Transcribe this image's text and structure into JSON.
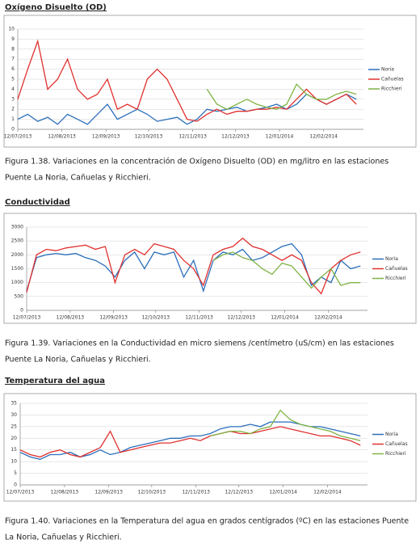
{
  "chart_data": [
    {
      "type": "line",
      "title": "Oxígeno Disuelto (OD)",
      "caption": [
        "Figura 1.38. Variaciones en la concentración de Oxígeno Disuelto (OD) en mg/litro en las estaciones",
        "Puente La Noria, Cañuelas y Ricchieri."
      ],
      "x": [
        "2013-07-12",
        "2013-07-19",
        "2013-07-26",
        "2013-08-02",
        "2013-08-09",
        "2013-08-16",
        "2013-08-23",
        "2013-08-30",
        "2013-09-06",
        "2013-09-13",
        "2013-09-20",
        "2013-09-27",
        "2013-10-04",
        "2013-10-11",
        "2013-10-18",
        "2013-10-25",
        "2013-11-01",
        "2013-11-08",
        "2013-11-15",
        "2013-11-22",
        "2013-11-29",
        "2013-12-06",
        "2013-12-13",
        "2013-12-20",
        "2013-12-27",
        "2014-01-03",
        "2014-01-10",
        "2014-01-17",
        "2014-01-24",
        "2014-01-31",
        "2014-02-07",
        "2014-02-14",
        "2014-02-21",
        "2014-02-28",
        "2014-03-07"
      ],
      "xlim": [
        "2013-07-12",
        "2014-03-12"
      ],
      "xticks": [
        {
          "value": "2013-07-12",
          "label": "12/07/2013"
        },
        {
          "value": "2013-08-12",
          "label": "12/08/2013"
        },
        {
          "value": "2013-09-12",
          "label": "12/09/2013"
        },
        {
          "value": "2013-10-12",
          "label": "12/10/2013"
        },
        {
          "value": "2013-11-12",
          "label": "12/11/2013"
        },
        {
          "value": "2013-12-12",
          "label": "12/12/2013"
        },
        {
          "value": "2014-01-12",
          "label": "12/01/2014"
        },
        {
          "value": "2014-02-12",
          "label": "12/02/2014"
        }
      ],
      "ylim": [
        0,
        10
      ],
      "yticks": [
        0,
        1,
        2,
        3,
        4,
        5,
        6,
        7,
        8,
        9,
        10
      ],
      "grid": true,
      "series": [
        {
          "name": "Noria",
          "color": "#2a6ebb",
          "values": [
            1,
            1.5,
            0.8,
            1.2,
            0.5,
            1.5,
            1,
            0.5,
            1.5,
            2.5,
            1,
            1.5,
            2,
            1.5,
            0.8,
            1,
            1.2,
            0.5,
            1,
            2,
            1.8,
            2,
            2.2,
            1.8,
            2,
            2.2,
            2.5,
            2,
            2.5,
            3.5,
            3,
            2.5,
            3,
            3.5,
            3
          ]
        },
        {
          "name": "Cañuelas",
          "color": "#e0302e",
          "values": [
            3,
            6,
            8.8,
            4,
            5,
            7,
            4,
            3,
            3.5,
            5,
            2,
            2.5,
            2,
            5,
            6,
            5,
            3,
            1,
            0.8,
            1.5,
            2,
            1.5,
            1.8,
            1.8,
            2,
            2,
            2.2,
            2,
            3,
            4,
            3,
            2.5,
            3,
            3.5,
            2.5
          ]
        },
        {
          "name": "Ricchieri",
          "color": "#7fb343",
          "values": [
            null,
            null,
            null,
            null,
            null,
            null,
            null,
            null,
            null,
            null,
            null,
            null,
            null,
            null,
            null,
            null,
            null,
            null,
            null,
            4,
            2.5,
            2,
            2.5,
            3,
            2.5,
            2.2,
            2,
            2.5,
            4.5,
            3.5,
            3,
            3,
            3.5,
            3.8,
            3.5
          ]
        }
      ]
    },
    {
      "type": "line",
      "title": "Conductividad",
      "caption": [
        "Figura 1.39. Variaciones en la Conductividad en micro siemens /centímetro (uS/cm) en las estaciones",
        "Puente La Noria, Cañuelas y Ricchieri."
      ],
      "x": [
        "2013-07-12",
        "2013-07-19",
        "2013-07-26",
        "2013-08-02",
        "2013-08-09",
        "2013-08-16",
        "2013-08-23",
        "2013-08-30",
        "2013-09-06",
        "2013-09-13",
        "2013-09-20",
        "2013-09-27",
        "2013-10-04",
        "2013-10-11",
        "2013-10-18",
        "2013-10-25",
        "2013-11-01",
        "2013-11-08",
        "2013-11-15",
        "2013-11-22",
        "2013-11-29",
        "2013-12-06",
        "2013-12-13",
        "2013-12-20",
        "2013-12-27",
        "2014-01-03",
        "2014-01-10",
        "2014-01-17",
        "2014-01-24",
        "2014-01-31",
        "2014-02-07",
        "2014-02-14",
        "2014-02-21",
        "2014-02-28",
        "2014-03-07"
      ],
      "xlim": [
        "2013-07-12",
        "2014-03-12"
      ],
      "xticks": [
        {
          "value": "2013-07-12",
          "label": "12/07/2013"
        },
        {
          "value": "2013-08-12",
          "label": "12/08/2013"
        },
        {
          "value": "2013-09-12",
          "label": "12/09/2013"
        },
        {
          "value": "2013-10-12",
          "label": "12/10/2013"
        },
        {
          "value": "2013-11-12",
          "label": "12/11/2013"
        },
        {
          "value": "2013-12-12",
          "label": "12/12/2013"
        },
        {
          "value": "2014-01-12",
          "label": "12/01/2014"
        },
        {
          "value": "2014-02-12",
          "label": "12/02/2014"
        }
      ],
      "ylim": [
        0,
        3000
      ],
      "yticks": [
        0,
        500,
        1000,
        1500,
        2000,
        2500,
        3000
      ],
      "grid": true,
      "series": [
        {
          "name": "Noria",
          "color": "#2a6ebb",
          "values": [
            700,
            1900,
            2000,
            2050,
            2000,
            2050,
            1900,
            1800,
            1600,
            1200,
            1800,
            2100,
            1500,
            2100,
            2000,
            2100,
            1200,
            1800,
            700,
            1800,
            2100,
            2000,
            2200,
            1800,
            1900,
            2100,
            2300,
            2400,
            2000,
            900,
            1200,
            1000,
            1800,
            1500,
            1600
          ]
        },
        {
          "name": "Cañuelas",
          "color": "#e0302e",
          "values": [
            650,
            2000,
            2200,
            2150,
            2250,
            2300,
            2350,
            2200,
            2300,
            1000,
            2000,
            2200,
            2000,
            2400,
            2300,
            2200,
            1800,
            1500,
            900,
            2000,
            2200,
            2300,
            2600,
            2300,
            2200,
            2000,
            1800,
            2000,
            1800,
            1000,
            600,
            1500,
            1800,
            2000,
            2100
          ]
        },
        {
          "name": "Ricchieri",
          "color": "#7fb343",
          "values": [
            null,
            null,
            null,
            null,
            null,
            null,
            null,
            null,
            null,
            null,
            null,
            null,
            null,
            null,
            null,
            null,
            null,
            null,
            null,
            1800,
            2000,
            2100,
            1900,
            1800,
            1500,
            1300,
            1700,
            1600,
            1200,
            800,
            1200,
            1500,
            900,
            1000,
            1000
          ]
        }
      ]
    },
    {
      "type": "line",
      "title": "Temperatura del agua",
      "caption": [
        "Figura 1.40. Variaciones en la Temperatura del agua en grados centígrados (ºC) en las estaciones Puente",
        "La Noria, Cañuelas y Ricchieri."
      ],
      "x": [
        "2013-07-12",
        "2013-07-19",
        "2013-07-26",
        "2013-08-02",
        "2013-08-09",
        "2013-08-16",
        "2013-08-23",
        "2013-08-30",
        "2013-09-06",
        "2013-09-13",
        "2013-09-20",
        "2013-09-27",
        "2013-10-04",
        "2013-10-11",
        "2013-10-18",
        "2013-10-25",
        "2013-11-01",
        "2013-11-08",
        "2013-11-15",
        "2013-11-22",
        "2013-11-29",
        "2013-12-06",
        "2013-12-13",
        "2013-12-20",
        "2013-12-27",
        "2014-01-03",
        "2014-01-10",
        "2014-01-17",
        "2014-01-24",
        "2014-01-31",
        "2014-02-07",
        "2014-02-14",
        "2014-02-21",
        "2014-02-28",
        "2014-03-07"
      ],
      "xlim": [
        "2013-07-12",
        "2014-03-12"
      ],
      "xticks": [
        {
          "value": "2013-07-12",
          "label": "12/07/2013"
        },
        {
          "value": "2013-08-12",
          "label": "12/08/2013"
        },
        {
          "value": "2013-09-12",
          "label": "12/09/2013"
        },
        {
          "value": "2013-10-12",
          "label": "12/10/2013"
        },
        {
          "value": "2013-11-12",
          "label": "12/11/2013"
        },
        {
          "value": "2013-12-12",
          "label": "12/12/2013"
        },
        {
          "value": "2014-01-12",
          "label": "12/01/2014"
        },
        {
          "value": "2014-02-12",
          "label": "12/02/2014"
        }
      ],
      "ylim": [
        0,
        35
      ],
      "yticks": [
        0,
        5,
        10,
        15,
        20,
        25,
        30,
        35
      ],
      "grid": true,
      "series": [
        {
          "name": "Noria",
          "color": "#2a6ebb",
          "values": [
            14,
            12,
            11,
            13,
            13,
            14,
            12,
            13,
            15,
            13,
            14,
            16,
            17,
            18,
            19,
            20,
            20,
            21,
            21,
            22,
            24,
            25,
            25,
            26,
            25,
            27,
            27,
            27,
            26,
            25,
            25,
            24,
            23,
            22,
            21
          ]
        },
        {
          "name": "Cañuelas",
          "color": "#e0302e",
          "values": [
            15,
            13,
            12,
            14,
            15,
            13,
            12,
            14,
            16,
            23,
            14,
            15,
            16,
            17,
            18,
            18,
            19,
            20,
            19,
            21,
            22,
            23,
            22,
            22,
            23,
            24,
            25,
            24,
            23,
            22,
            21,
            21,
            20,
            19,
            17
          ]
        },
        {
          "name": "Ricchieri",
          "color": "#7fb343",
          "values": [
            null,
            null,
            null,
            null,
            null,
            null,
            null,
            null,
            null,
            null,
            null,
            null,
            null,
            null,
            null,
            null,
            null,
            null,
            null,
            21,
            22,
            23,
            23,
            22,
            24,
            25,
            32,
            28,
            26,
            25,
            24,
            23,
            21,
            20,
            19
          ]
        }
      ]
    }
  ]
}
